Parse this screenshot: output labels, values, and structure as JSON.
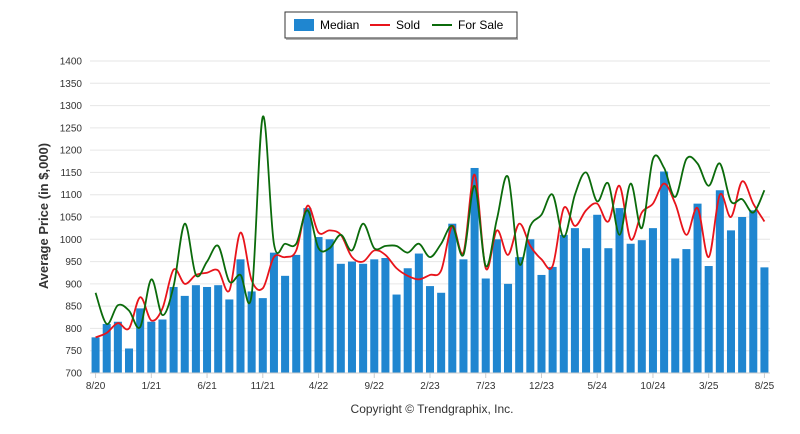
{
  "chart_data": {
    "type": "bar",
    "ylabel": "Average Price (in $,000)",
    "ylim": [
      700,
      1400
    ],
    "yticks": [
      700,
      750,
      800,
      850,
      900,
      950,
      1000,
      1050,
      1100,
      1150,
      1200,
      1250,
      1300,
      1350,
      1400
    ],
    "grid": true,
    "legend_position": "top-center",
    "x_tick_labels": [
      {
        "index": 0,
        "label": "8/20"
      },
      {
        "index": 5,
        "label": "1/21"
      },
      {
        "index": 10,
        "label": "6/21"
      },
      {
        "index": 15,
        "label": "11/21"
      },
      {
        "index": 20,
        "label": "4/22"
      },
      {
        "index": 25,
        "label": "9/22"
      },
      {
        "index": 30,
        "label": "2/23"
      },
      {
        "index": 35,
        "label": "7/23"
      },
      {
        "index": 40,
        "label": "12/23"
      },
      {
        "index": 45,
        "label": "5/24"
      },
      {
        "index": 50,
        "label": "10/24"
      },
      {
        "index": 55,
        "label": "3/25"
      },
      {
        "index": 60,
        "label": "8/25"
      }
    ],
    "series": [
      {
        "name": "Median",
        "kind": "bar",
        "color": "#1f86d0",
        "values": [
          780,
          810,
          815,
          755,
          845,
          815,
          820,
          893,
          873,
          897,
          893,
          897,
          865,
          955,
          883,
          868,
          970,
          918,
          965,
          1070,
          1005,
          1000,
          945,
          950,
          945,
          955,
          958,
          876,
          935,
          968,
          895,
          880,
          1035,
          955,
          1160,
          912,
          1000,
          900,
          960,
          1000,
          920,
          938,
          1010,
          1025,
          980,
          1055,
          980,
          1070,
          990,
          998,
          1025,
          1152,
          957,
          978,
          1080,
          940,
          1110,
          1020,
          1050,
          1065,
          937
        ]
      },
      {
        "name": "Sold",
        "kind": "line",
        "color": "#e8141b",
        "values": [
          780,
          790,
          812,
          800,
          870,
          818,
          845,
          932,
          900,
          920,
          925,
          930,
          885,
          1015,
          908,
          890,
          960,
          960,
          975,
          1075,
          1015,
          1020,
          1010,
          960,
          950,
          975,
          965,
          935,
          918,
          910,
          920,
          930,
          1030,
          970,
          1145,
          935,
          1020,
          965,
          1035,
          985,
          955,
          940,
          1070,
          1030,
          1065,
          1080,
          1040,
          1120,
          1000,
          1060,
          1080,
          1125,
          1080,
          1010,
          1070,
          960,
          1100,
          1050,
          1130,
          1080,
          1040
        ]
      },
      {
        "name": "For Sale",
        "kind": "line",
        "color": "#0b6b0b",
        "values": [
          880,
          810,
          852,
          840,
          803,
          910,
          830,
          895,
          1035,
          920,
          950,
          985,
          905,
          920,
          875,
          1275,
          990,
          990,
          990,
          1065,
          980,
          980,
          1010,
          975,
          1035,
          980,
          985,
          985,
          970,
          990,
          960,
          990,
          1030,
          965,
          1120,
          940,
          1045,
          1140,
          945,
          1030,
          1055,
          1100,
          1005,
          1100,
          1150,
          1085,
          1125,
          1010,
          1125,
          1025,
          1180,
          1160,
          1095,
          1180,
          1170,
          1120,
          1170,
          1085,
          1090,
          1060,
          1110
        ]
      }
    ]
  },
  "footer": {
    "copyright": "Copyright © Trendgraphix, Inc."
  }
}
